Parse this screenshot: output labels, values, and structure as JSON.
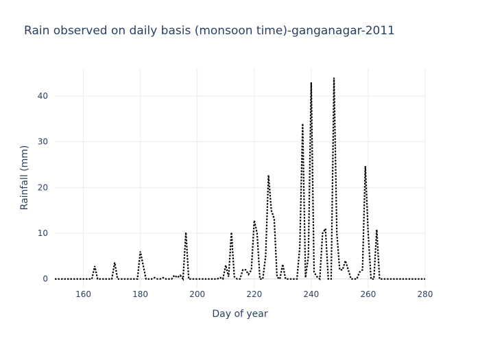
{
  "chart_data": {
    "type": "line",
    "title": "Rain observed on daily basis (monsoon time)-ganganagar-2011",
    "xlabel": "Day of year",
    "ylabel": "Rainfall (mm)",
    "xlim": [
      150,
      280
    ],
    "ylim": [
      -2,
      46
    ],
    "xticks": [
      160,
      180,
      200,
      220,
      240,
      260,
      280
    ],
    "yticks": [
      0,
      10,
      20,
      30,
      40
    ],
    "line_color": "#000000",
    "line_style": "dotted",
    "x": [
      150,
      151,
      152,
      153,
      154,
      155,
      156,
      157,
      158,
      159,
      160,
      161,
      162,
      163,
      164,
      165,
      166,
      167,
      168,
      169,
      170,
      171,
      172,
      173,
      174,
      175,
      176,
      177,
      178,
      179,
      180,
      181,
      182,
      183,
      184,
      185,
      186,
      187,
      188,
      189,
      190,
      191,
      192,
      193,
      194,
      195,
      196,
      197,
      198,
      199,
      200,
      201,
      202,
      203,
      204,
      205,
      206,
      207,
      208,
      209,
      210,
      211,
      212,
      213,
      214,
      215,
      216,
      217,
      218,
      219,
      220,
      221,
      222,
      223,
      224,
      225,
      226,
      227,
      228,
      229,
      230,
      231,
      232,
      233,
      234,
      235,
      236,
      237,
      238,
      239,
      240,
      241,
      242,
      243,
      244,
      245,
      246,
      247,
      248,
      249,
      250,
      251,
      252,
      253,
      254,
      255,
      256,
      257,
      258,
      259,
      260,
      261,
      262,
      263,
      264,
      265,
      266,
      267,
      268,
      269,
      270,
      271,
      272,
      273,
      274,
      275,
      276,
      277,
      278,
      279,
      280
    ],
    "values": [
      0,
      0,
      0,
      0,
      0,
      0,
      0,
      0,
      0,
      0,
      0,
      0,
      0,
      0,
      2.8,
      0,
      0,
      0,
      0,
      0,
      0,
      3.6,
      0,
      0,
      0,
      0,
      0,
      0,
      0,
      0,
      6,
      3,
      0,
      0,
      0,
      0.3,
      0,
      0,
      0.3,
      0,
      0,
      0,
      0.8,
      0.3,
      0.8,
      0,
      10.2,
      0,
      0,
      0,
      0,
      0,
      0,
      0,
      0,
      0,
      0,
      0,
      0.3,
      0,
      3,
      0.5,
      10.2,
      0.5,
      0,
      0,
      2,
      2,
      1,
      2,
      12.8,
      10,
      0,
      0,
      5,
      22.7,
      15,
      13.2,
      0.4,
      0,
      3.2,
      0,
      0,
      0,
      0,
      0,
      7,
      34,
      0.3,
      5,
      43,
      1.5,
      0.5,
      0,
      10,
      11,
      0,
      0,
      44,
      10,
      2,
      2,
      4,
      2,
      0,
      0,
      0,
      1.5,
      2,
      24.7,
      10,
      0,
      0,
      10.8,
      0,
      0,
      0,
      0,
      0,
      0,
      0,
      0,
      0,
      0,
      0,
      0,
      0,
      0,
      0,
      0,
      0
    ]
  }
}
